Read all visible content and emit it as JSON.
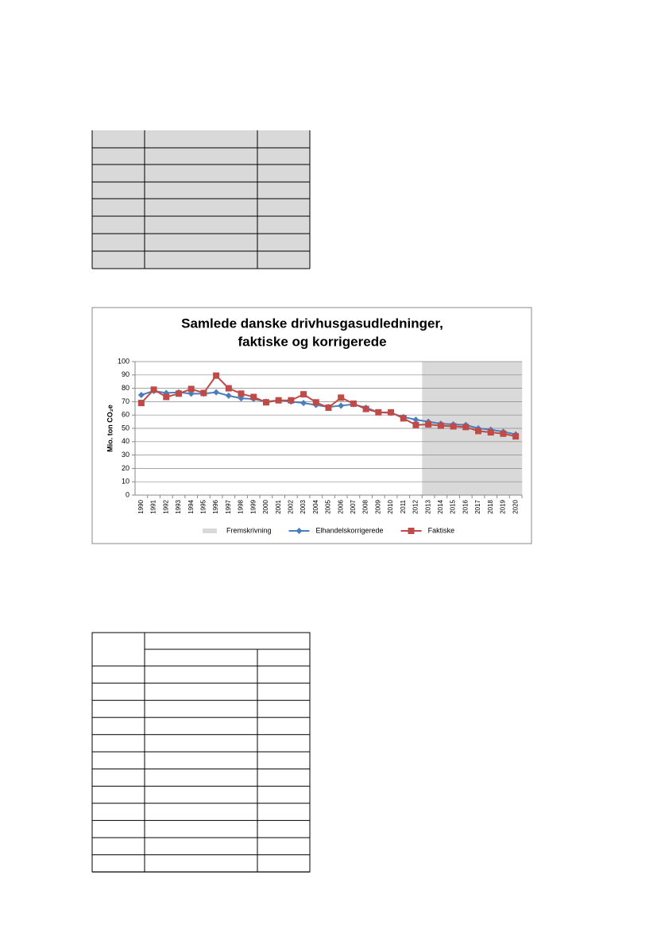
{
  "chart_data": {
    "type": "line",
    "title": [
      "Samlede danske drivhusgasudledninger,",
      "faktiske og korrigerede"
    ],
    "y_label": "Mio. ton CO₂e",
    "categories": [
      "1990",
      "1991",
      "1992",
      "1993",
      "1994",
      "1995",
      "1996",
      "1997",
      "1998",
      "1999",
      "2000",
      "2001",
      "2002",
      "2003",
      "2004",
      "2005",
      "2006",
      "2007",
      "2008",
      "2009",
      "2010",
      "2011",
      "2012",
      "2013",
      "2014",
      "2015",
      "2016",
      "2017",
      "2018",
      "2019",
      "2020"
    ],
    "series": [
      {
        "name": "Fremskrivning",
        "type": "bar",
        "color": "#d9d9d9",
        "values": [
          null,
          null,
          null,
          null,
          null,
          null,
          null,
          null,
          null,
          null,
          null,
          null,
          null,
          null,
          null,
          null,
          null,
          null,
          null,
          null,
          null,
          null,
          null,
          100,
          100,
          100,
          100,
          100,
          100,
          100,
          100
        ]
      },
      {
        "name": "Elhandelskorrigerede",
        "type": "line",
        "marker": "diamond",
        "color": "#4a7ebb",
        "values": [
          75,
          78,
          76.5,
          77,
          76,
          76,
          77,
          74.5,
          72.5,
          72,
          70,
          71,
          70,
          69,
          67.5,
          66,
          67,
          68,
          65.5,
          62,
          61.5,
          58.5,
          56.5,
          55,
          53.5,
          53,
          52.5,
          50,
          49,
          47.5,
          45.5
        ]
      },
      {
        "name": "Faktiske",
        "type": "line",
        "marker": "square",
        "color": "#be4b48",
        "values": [
          69,
          79,
          73.5,
          76,
          79.5,
          76.5,
          89.5,
          80,
          76,
          73.5,
          69.5,
          71,
          71,
          75.5,
          69.5,
          65.5,
          73,
          68.5,
          64.5,
          62,
          62,
          57.5,
          52.5,
          53,
          52,
          51.5,
          51,
          48,
          47,
          46,
          44
        ]
      }
    ],
    "ylim": [
      0,
      100
    ],
    "yticks": [
      0,
      10,
      20,
      30,
      40,
      50,
      60,
      70,
      80,
      90,
      100
    ],
    "grid": true,
    "legend": "bottom"
  }
}
